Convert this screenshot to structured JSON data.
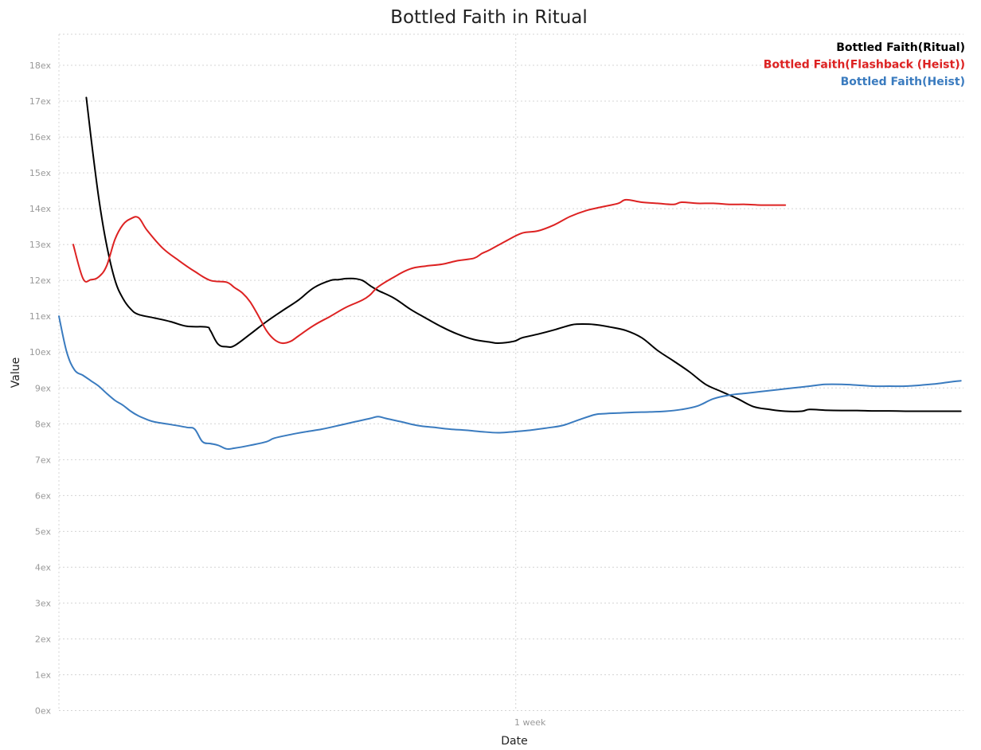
{
  "chart_data": {
    "type": "line",
    "title": "Bottled Faith in Ritual",
    "xlabel": "Date",
    "ylabel": "Value",
    "x_domain": [
      0,
      13.86
    ],
    "x_unit": "days",
    "x_ticks": [
      {
        "value": 7,
        "label": "1 week"
      }
    ],
    "ylim": [
      0,
      19
    ],
    "y_ticks": [
      {
        "value": 0,
        "label": "0ex"
      },
      {
        "value": 1,
        "label": "1ex"
      },
      {
        "value": 2,
        "label": "2ex"
      },
      {
        "value": 3,
        "label": "3ex"
      },
      {
        "value": 4,
        "label": "4ex"
      },
      {
        "value": 5,
        "label": "5ex"
      },
      {
        "value": 6,
        "label": "6ex"
      },
      {
        "value": 7,
        "label": "7ex"
      },
      {
        "value": 8,
        "label": "8ex"
      },
      {
        "value": 9,
        "label": "9ex"
      },
      {
        "value": 10,
        "label": "10ex"
      },
      {
        "value": 11,
        "label": "11ex"
      },
      {
        "value": 12,
        "label": "12ex"
      },
      {
        "value": 13,
        "label": "13ex"
      },
      {
        "value": 14,
        "label": "14ex"
      },
      {
        "value": 15,
        "label": "15ex"
      },
      {
        "value": 16,
        "label": "16ex"
      },
      {
        "value": 17,
        "label": "17ex"
      },
      {
        "value": 18,
        "label": "18ex"
      }
    ],
    "grid": true,
    "legend_position": "top-right",
    "series": [
      {
        "name": "Bottled Faith(Ritual)",
        "color": "#000000",
        "points": [
          [
            0.42,
            17.1
          ],
          [
            0.49,
            16.0
          ],
          [
            0.61,
            14.3
          ],
          [
            0.73,
            13.0
          ],
          [
            0.86,
            12.0
          ],
          [
            0.98,
            11.5
          ],
          [
            1.1,
            11.2
          ],
          [
            1.22,
            11.05
          ],
          [
            1.47,
            10.95
          ],
          [
            1.71,
            10.85
          ],
          [
            1.96,
            10.72
          ],
          [
            2.26,
            10.7
          ],
          [
            2.32,
            10.6
          ],
          [
            2.44,
            10.22
          ],
          [
            2.57,
            10.15
          ],
          [
            2.69,
            10.18
          ],
          [
            2.93,
            10.5
          ],
          [
            3.18,
            10.85
          ],
          [
            3.42,
            11.15
          ],
          [
            3.67,
            11.45
          ],
          [
            3.91,
            11.8
          ],
          [
            4.16,
            12.0
          ],
          [
            4.28,
            12.02
          ],
          [
            4.4,
            12.05
          ],
          [
            4.52,
            12.05
          ],
          [
            4.65,
            12.0
          ],
          [
            4.77,
            11.85
          ],
          [
            4.89,
            11.72
          ],
          [
            5.14,
            11.5
          ],
          [
            5.38,
            11.2
          ],
          [
            5.62,
            10.95
          ],
          [
            5.87,
            10.7
          ],
          [
            6.11,
            10.5
          ],
          [
            6.36,
            10.35
          ],
          [
            6.6,
            10.28
          ],
          [
            6.73,
            10.25
          ],
          [
            6.97,
            10.3
          ],
          [
            7.1,
            10.4
          ],
          [
            7.34,
            10.5
          ],
          [
            7.59,
            10.62
          ],
          [
            7.83,
            10.75
          ],
          [
            7.95,
            10.78
          ],
          [
            8.2,
            10.77
          ],
          [
            8.44,
            10.7
          ],
          [
            8.69,
            10.6
          ],
          [
            8.93,
            10.4
          ],
          [
            9.17,
            10.05
          ],
          [
            9.42,
            9.75
          ],
          [
            9.66,
            9.45
          ],
          [
            9.91,
            9.1
          ],
          [
            10.15,
            8.9
          ],
          [
            10.4,
            8.7
          ],
          [
            10.64,
            8.48
          ],
          [
            10.89,
            8.4
          ],
          [
            11.13,
            8.35
          ],
          [
            11.38,
            8.35
          ],
          [
            11.5,
            8.4
          ],
          [
            11.74,
            8.38
          ],
          [
            11.99,
            8.37
          ],
          [
            12.23,
            8.37
          ],
          [
            12.48,
            8.36
          ],
          [
            12.72,
            8.36
          ],
          [
            12.97,
            8.35
          ],
          [
            13.21,
            8.35
          ],
          [
            13.46,
            8.35
          ],
          [
            13.7,
            8.35
          ],
          [
            13.82,
            8.35
          ]
        ]
      },
      {
        "name": "Bottled Faith(Flashback (Heist))",
        "color": "#dd2222",
        "points": [
          [
            0.22,
            13.0
          ],
          [
            0.37,
            12.05
          ],
          [
            0.49,
            12.02
          ],
          [
            0.61,
            12.1
          ],
          [
            0.73,
            12.4
          ],
          [
            0.86,
            13.15
          ],
          [
            0.98,
            13.55
          ],
          [
            1.1,
            13.72
          ],
          [
            1.22,
            13.75
          ],
          [
            1.35,
            13.4
          ],
          [
            1.59,
            12.9
          ],
          [
            1.84,
            12.55
          ],
          [
            2.08,
            12.25
          ],
          [
            2.32,
            12.0
          ],
          [
            2.57,
            11.95
          ],
          [
            2.69,
            11.8
          ],
          [
            2.81,
            11.65
          ],
          [
            2.93,
            11.4
          ],
          [
            3.06,
            11.0
          ],
          [
            3.18,
            10.6
          ],
          [
            3.3,
            10.35
          ],
          [
            3.42,
            10.25
          ],
          [
            3.55,
            10.3
          ],
          [
            3.67,
            10.45
          ],
          [
            3.91,
            10.75
          ],
          [
            4.16,
            11.0
          ],
          [
            4.4,
            11.25
          ],
          [
            4.65,
            11.45
          ],
          [
            4.77,
            11.6
          ],
          [
            4.89,
            11.82
          ],
          [
            5.14,
            12.1
          ],
          [
            5.38,
            12.32
          ],
          [
            5.62,
            12.4
          ],
          [
            5.87,
            12.45
          ],
          [
            6.11,
            12.55
          ],
          [
            6.36,
            12.62
          ],
          [
            6.48,
            12.75
          ],
          [
            6.6,
            12.85
          ],
          [
            6.85,
            13.1
          ],
          [
            7.1,
            13.32
          ],
          [
            7.34,
            13.38
          ],
          [
            7.59,
            13.55
          ],
          [
            7.83,
            13.78
          ],
          [
            8.08,
            13.95
          ],
          [
            8.32,
            14.05
          ],
          [
            8.57,
            14.15
          ],
          [
            8.69,
            14.25
          ],
          [
            8.93,
            14.18
          ],
          [
            9.17,
            14.15
          ],
          [
            9.42,
            14.12
          ],
          [
            9.54,
            14.18
          ],
          [
            9.78,
            14.15
          ],
          [
            10.03,
            14.15
          ],
          [
            10.27,
            14.12
          ],
          [
            10.52,
            14.12
          ],
          [
            10.76,
            14.1
          ],
          [
            11.01,
            14.1
          ],
          [
            11.13,
            14.1
          ]
        ]
      },
      {
        "name": "Bottled Faith(Heist)",
        "color": "#3a7bbf",
        "points": [
          [
            0.0,
            11.0
          ],
          [
            0.12,
            10.0
          ],
          [
            0.24,
            9.5
          ],
          [
            0.37,
            9.35
          ],
          [
            0.49,
            9.2
          ],
          [
            0.61,
            9.05
          ],
          [
            0.73,
            8.85
          ],
          [
            0.86,
            8.65
          ],
          [
            0.98,
            8.52
          ],
          [
            1.1,
            8.35
          ],
          [
            1.22,
            8.22
          ],
          [
            1.35,
            8.12
          ],
          [
            1.47,
            8.05
          ],
          [
            1.71,
            7.98
          ],
          [
            1.96,
            7.9
          ],
          [
            2.08,
            7.85
          ],
          [
            2.2,
            7.5
          ],
          [
            2.32,
            7.45
          ],
          [
            2.44,
            7.4
          ],
          [
            2.57,
            7.3
          ],
          [
            2.69,
            7.32
          ],
          [
            2.93,
            7.4
          ],
          [
            3.18,
            7.5
          ],
          [
            3.3,
            7.6
          ],
          [
            3.55,
            7.7
          ],
          [
            3.79,
            7.78
          ],
          [
            4.03,
            7.85
          ],
          [
            4.28,
            7.95
          ],
          [
            4.52,
            8.05
          ],
          [
            4.77,
            8.15
          ],
          [
            4.89,
            8.2
          ],
          [
            5.01,
            8.15
          ],
          [
            5.26,
            8.05
          ],
          [
            5.5,
            7.95
          ],
          [
            5.75,
            7.9
          ],
          [
            5.99,
            7.85
          ],
          [
            6.24,
            7.82
          ],
          [
            6.48,
            7.78
          ],
          [
            6.73,
            7.75
          ],
          [
            6.97,
            7.78
          ],
          [
            7.22,
            7.82
          ],
          [
            7.46,
            7.88
          ],
          [
            7.71,
            7.95
          ],
          [
            7.95,
            8.1
          ],
          [
            8.2,
            8.25
          ],
          [
            8.32,
            8.28
          ],
          [
            8.57,
            8.3
          ],
          [
            8.81,
            8.32
          ],
          [
            9.05,
            8.33
          ],
          [
            9.3,
            8.35
          ],
          [
            9.54,
            8.4
          ],
          [
            9.79,
            8.5
          ],
          [
            10.03,
            8.7
          ],
          [
            10.27,
            8.8
          ],
          [
            10.52,
            8.85
          ],
          [
            10.76,
            8.9
          ],
          [
            11.01,
            8.95
          ],
          [
            11.25,
            9.0
          ],
          [
            11.5,
            9.05
          ],
          [
            11.74,
            9.1
          ],
          [
            11.99,
            9.1
          ],
          [
            12.23,
            9.08
          ],
          [
            12.48,
            9.05
          ],
          [
            12.72,
            9.05
          ],
          [
            12.97,
            9.05
          ],
          [
            13.21,
            9.08
          ],
          [
            13.46,
            9.12
          ],
          [
            13.7,
            9.18
          ],
          [
            13.82,
            9.2
          ]
        ]
      }
    ]
  }
}
